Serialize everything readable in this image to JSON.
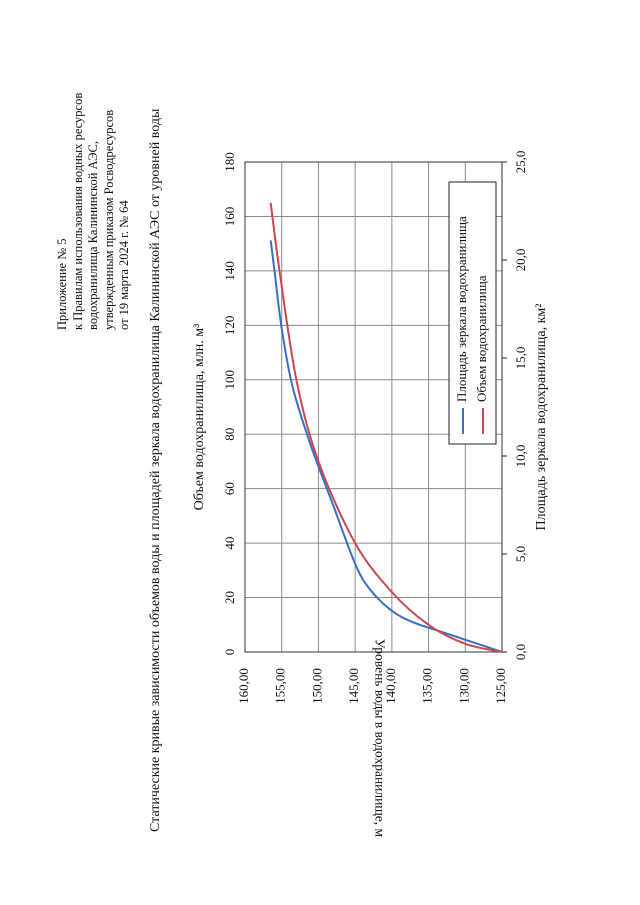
{
  "header": {
    "lines": [
      "Приложение № 5",
      "к Правилам использования водных ресурсов",
      "водохранилища Калининской АЭС,",
      "утвержденным приказом Росводресурсов",
      "от 19 марта 2024 г. № 64"
    ]
  },
  "document_title": "Статические кривые зависимости объемов воды и площадей зеркала водохранилища Калининской АЭС от уровней воды",
  "colors": {
    "area_series": "#3a6fc4",
    "volume_series": "#c9484f",
    "grid": "#8c8c8c"
  },
  "chart_data": {
    "type": "line",
    "title": "",
    "ylabel": "Уровень воды в водохранилище, м",
    "ylim": [
      125,
      160
    ],
    "y_ticks": [
      "125,00",
      "130,00",
      "135,00",
      "140,00",
      "145,00",
      "150,00",
      "155,00",
      "160,00"
    ],
    "x_top_label": "Объем водохранилища, млн. м³",
    "x_top_lim": [
      0,
      180
    ],
    "x_top_ticks": [
      "0",
      "20",
      "40",
      "60",
      "80",
      "100",
      "120",
      "140",
      "160",
      "180"
    ],
    "x_bottom_label": "Площадь зеркала водохранилища, км²",
    "x_bottom_lim": [
      0,
      25
    ],
    "x_bottom_ticks": [
      "0,0",
      "5,0",
      "10,0",
      "15,0",
      "20,0",
      "25,0"
    ],
    "grid": true,
    "legend_position": "inside-right",
    "series": [
      {
        "name": "Площадь зеркала водохранилища",
        "axis": "bottom",
        "color": "#3a6fc4",
        "points": [
          {
            "x": 0.0,
            "y": 125.0
          },
          {
            "x": 0.5,
            "y": 129.0
          },
          {
            "x": 1.0,
            "y": 133.0
          },
          {
            "x": 1.5,
            "y": 137.0
          },
          {
            "x": 2.1,
            "y": 140.0
          },
          {
            "x": 3.2,
            "y": 143.0
          },
          {
            "x": 4.5,
            "y": 145.0
          },
          {
            "x": 7.5,
            "y": 148.0
          },
          {
            "x": 10.5,
            "y": 151.0
          },
          {
            "x": 13.5,
            "y": 153.5
          },
          {
            "x": 16.5,
            "y": 155.0
          },
          {
            "x": 19.5,
            "y": 156.0
          },
          {
            "x": 21.0,
            "y": 156.5
          }
        ]
      },
      {
        "name": "Объем водохранилища",
        "axis": "top",
        "color": "#c9484f",
        "points": [
          {
            "x": 0,
            "y": 125.0
          },
          {
            "x": 3,
            "y": 130.0
          },
          {
            "x": 10,
            "y": 135.0
          },
          {
            "x": 22,
            "y": 140.0
          },
          {
            "x": 40,
            "y": 145.0
          },
          {
            "x": 70,
            "y": 150.0
          },
          {
            "x": 100,
            "y": 153.0
          },
          {
            "x": 140,
            "y": 155.3
          },
          {
            "x": 165,
            "y": 156.5
          }
        ]
      }
    ]
  }
}
